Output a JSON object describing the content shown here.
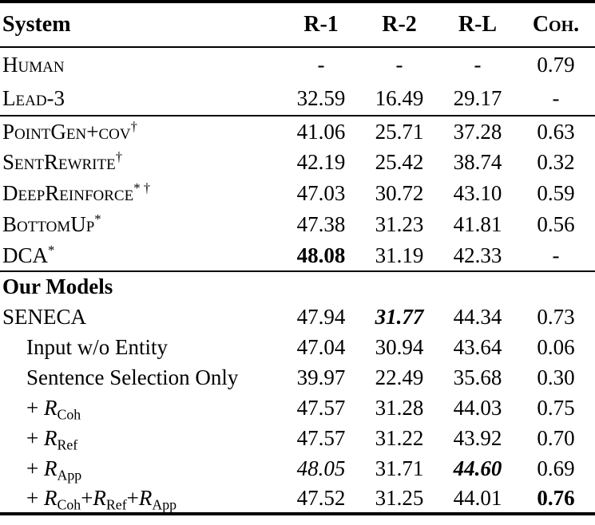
{
  "colors": {
    "background": "#ffffff",
    "text": "#000000",
    "rule": "#000000"
  },
  "table": {
    "header": {
      "system": "System",
      "cols": [
        {
          "t": "R-1",
          "s": "plain"
        },
        {
          "t": "R-2",
          "s": "plain"
        },
        {
          "t": "R-L",
          "s": "plain"
        },
        {
          "t": "Coh.",
          "s": "sc"
        }
      ]
    },
    "sections": [
      {
        "rows": [
          {
            "id": "human",
            "indent": false,
            "name": [
              {
                "t": "Human",
                "s": "sc"
              }
            ],
            "values": [
              {
                "t": "-",
                "s": "plain"
              },
              {
                "t": "-",
                "s": "plain"
              },
              {
                "t": "-",
                "s": "plain"
              },
              {
                "t": "0.79",
                "s": "plain"
              }
            ]
          },
          {
            "id": "lead-3",
            "indent": false,
            "name": [
              {
                "t": "Lead-3",
                "s": "sc"
              }
            ],
            "values": [
              {
                "t": "32.59",
                "s": "plain"
              },
              {
                "t": "16.49",
                "s": "plain"
              },
              {
                "t": "29.17",
                "s": "plain"
              },
              {
                "t": "-",
                "s": "plain"
              }
            ]
          }
        ]
      },
      {
        "rows": [
          {
            "id": "pointgen-cov",
            "indent": false,
            "name": [
              {
                "t": "PointGen+cov",
                "s": "sc"
              },
              {
                "t": "†",
                "s": "sup"
              }
            ],
            "values": [
              {
                "t": "41.06",
                "s": "plain"
              },
              {
                "t": "25.71",
                "s": "plain"
              },
              {
                "t": "37.28",
                "s": "plain"
              },
              {
                "t": "0.63",
                "s": "plain"
              }
            ]
          },
          {
            "id": "sentrewrite",
            "indent": false,
            "name": [
              {
                "t": "SentRewrite",
                "s": "sc"
              },
              {
                "t": "†",
                "s": "sup"
              }
            ],
            "values": [
              {
                "t": "42.19",
                "s": "plain"
              },
              {
                "t": "25.42",
                "s": "plain"
              },
              {
                "t": "38.74",
                "s": "plain"
              },
              {
                "t": "0.32",
                "s": "plain"
              }
            ]
          },
          {
            "id": "deepreinforce",
            "indent": false,
            "name": [
              {
                "t": "DeepReinforce",
                "s": "sc"
              },
              {
                "t": "* †",
                "s": "sup"
              }
            ],
            "values": [
              {
                "t": "47.03",
                "s": "plain"
              },
              {
                "t": "30.72",
                "s": "plain"
              },
              {
                "t": "43.10",
                "s": "plain"
              },
              {
                "t": "0.59",
                "s": "plain"
              }
            ]
          },
          {
            "id": "bottomup",
            "indent": false,
            "name": [
              {
                "t": "BottomUp",
                "s": "sc"
              },
              {
                "t": "*",
                "s": "sup"
              }
            ],
            "values": [
              {
                "t": "47.38",
                "s": "plain"
              },
              {
                "t": "31.23",
                "s": "plain"
              },
              {
                "t": "41.81",
                "s": "plain"
              },
              {
                "t": "0.56",
                "s": "plain"
              }
            ]
          },
          {
            "id": "dca",
            "indent": false,
            "name": [
              {
                "t": "DCA",
                "s": "plain"
              },
              {
                "t": "*",
                "s": "sup"
              }
            ],
            "values": [
              {
                "t": "48.08",
                "s": "b"
              },
              {
                "t": "31.19",
                "s": "plain"
              },
              {
                "t": "42.33",
                "s": "plain"
              },
              {
                "t": "-",
                "s": "plain"
              }
            ]
          }
        ]
      },
      {
        "rows": [
          {
            "id": "our-models-header",
            "indent": false,
            "name": [
              {
                "t": "Our Models",
                "s": "b"
              }
            ],
            "values": [
              {
                "t": "",
                "s": "plain"
              },
              {
                "t": "",
                "s": "plain"
              },
              {
                "t": "",
                "s": "plain"
              },
              {
                "t": "",
                "s": "plain"
              }
            ]
          },
          {
            "id": "seneca",
            "indent": false,
            "name": [
              {
                "t": "SENECA",
                "s": "plain"
              }
            ],
            "values": [
              {
                "t": "47.94",
                "s": "plain"
              },
              {
                "t": "31.77",
                "s": "bi"
              },
              {
                "t": "44.34",
                "s": "plain"
              },
              {
                "t": "0.73",
                "s": "plain"
              }
            ]
          },
          {
            "id": "input-wo-entity",
            "indent": true,
            "name": [
              {
                "t": "Input w/o Entity",
                "s": "plain"
              }
            ],
            "values": [
              {
                "t": "47.04",
                "s": "plain"
              },
              {
                "t": "30.94",
                "s": "plain"
              },
              {
                "t": "43.64",
                "s": "plain"
              },
              {
                "t": "0.06",
                "s": "plain"
              }
            ]
          },
          {
            "id": "sentence-selection-only",
            "indent": true,
            "name": [
              {
                "t": "Sentence Selection Only",
                "s": "plain"
              }
            ],
            "values": [
              {
                "t": "39.97",
                "s": "plain"
              },
              {
                "t": "22.49",
                "s": "plain"
              },
              {
                "t": "35.68",
                "s": "plain"
              },
              {
                "t": "0.30",
                "s": "plain"
              }
            ]
          },
          {
            "id": "r-coh",
            "indent": true,
            "name": [
              {
                "t": "+ ",
                "s": "plain"
              },
              {
                "t": "R",
                "s": "mi"
              },
              {
                "t": "Coh",
                "s": "sub"
              }
            ],
            "values": [
              {
                "t": "47.57",
                "s": "plain"
              },
              {
                "t": "31.28",
                "s": "plain"
              },
              {
                "t": "44.03",
                "s": "plain"
              },
              {
                "t": "0.75",
                "s": "plain"
              }
            ]
          },
          {
            "id": "r-ref",
            "indent": true,
            "name": [
              {
                "t": "+ ",
                "s": "plain"
              },
              {
                "t": "R",
                "s": "mi"
              },
              {
                "t": "Ref",
                "s": "sub"
              }
            ],
            "values": [
              {
                "t": "47.57",
                "s": "plain"
              },
              {
                "t": "31.22",
                "s": "plain"
              },
              {
                "t": "43.92",
                "s": "plain"
              },
              {
                "t": "0.70",
                "s": "plain"
              }
            ]
          },
          {
            "id": "r-app",
            "indent": true,
            "name": [
              {
                "t": "+ ",
                "s": "plain"
              },
              {
                "t": "R",
                "s": "mi"
              },
              {
                "t": "App",
                "s": "sub"
              }
            ],
            "values": [
              {
                "t": "48.05",
                "s": "i"
              },
              {
                "t": "31.71",
                "s": "plain"
              },
              {
                "t": "44.60",
                "s": "bi"
              },
              {
                "t": "0.69",
                "s": "plain"
              }
            ]
          },
          {
            "id": "r-coh-ref-app",
            "indent": true,
            "name": [
              {
                "t": "+ ",
                "s": "plain"
              },
              {
                "t": "R",
                "s": "mi"
              },
              {
                "t": "Coh",
                "s": "sub"
              },
              {
                "t": "+",
                "s": "plain"
              },
              {
                "t": "R",
                "s": "mi"
              },
              {
                "t": "Ref",
                "s": "sub"
              },
              {
                "t": "+",
                "s": "plain"
              },
              {
                "t": "R",
                "s": "mi"
              },
              {
                "t": "App",
                "s": "sub"
              }
            ],
            "values": [
              {
                "t": "47.52",
                "s": "plain"
              },
              {
                "t": "31.25",
                "s": "plain"
              },
              {
                "t": "44.01",
                "s": "plain"
              },
              {
                "t": "0.76",
                "s": "b"
              }
            ]
          }
        ]
      }
    ]
  }
}
